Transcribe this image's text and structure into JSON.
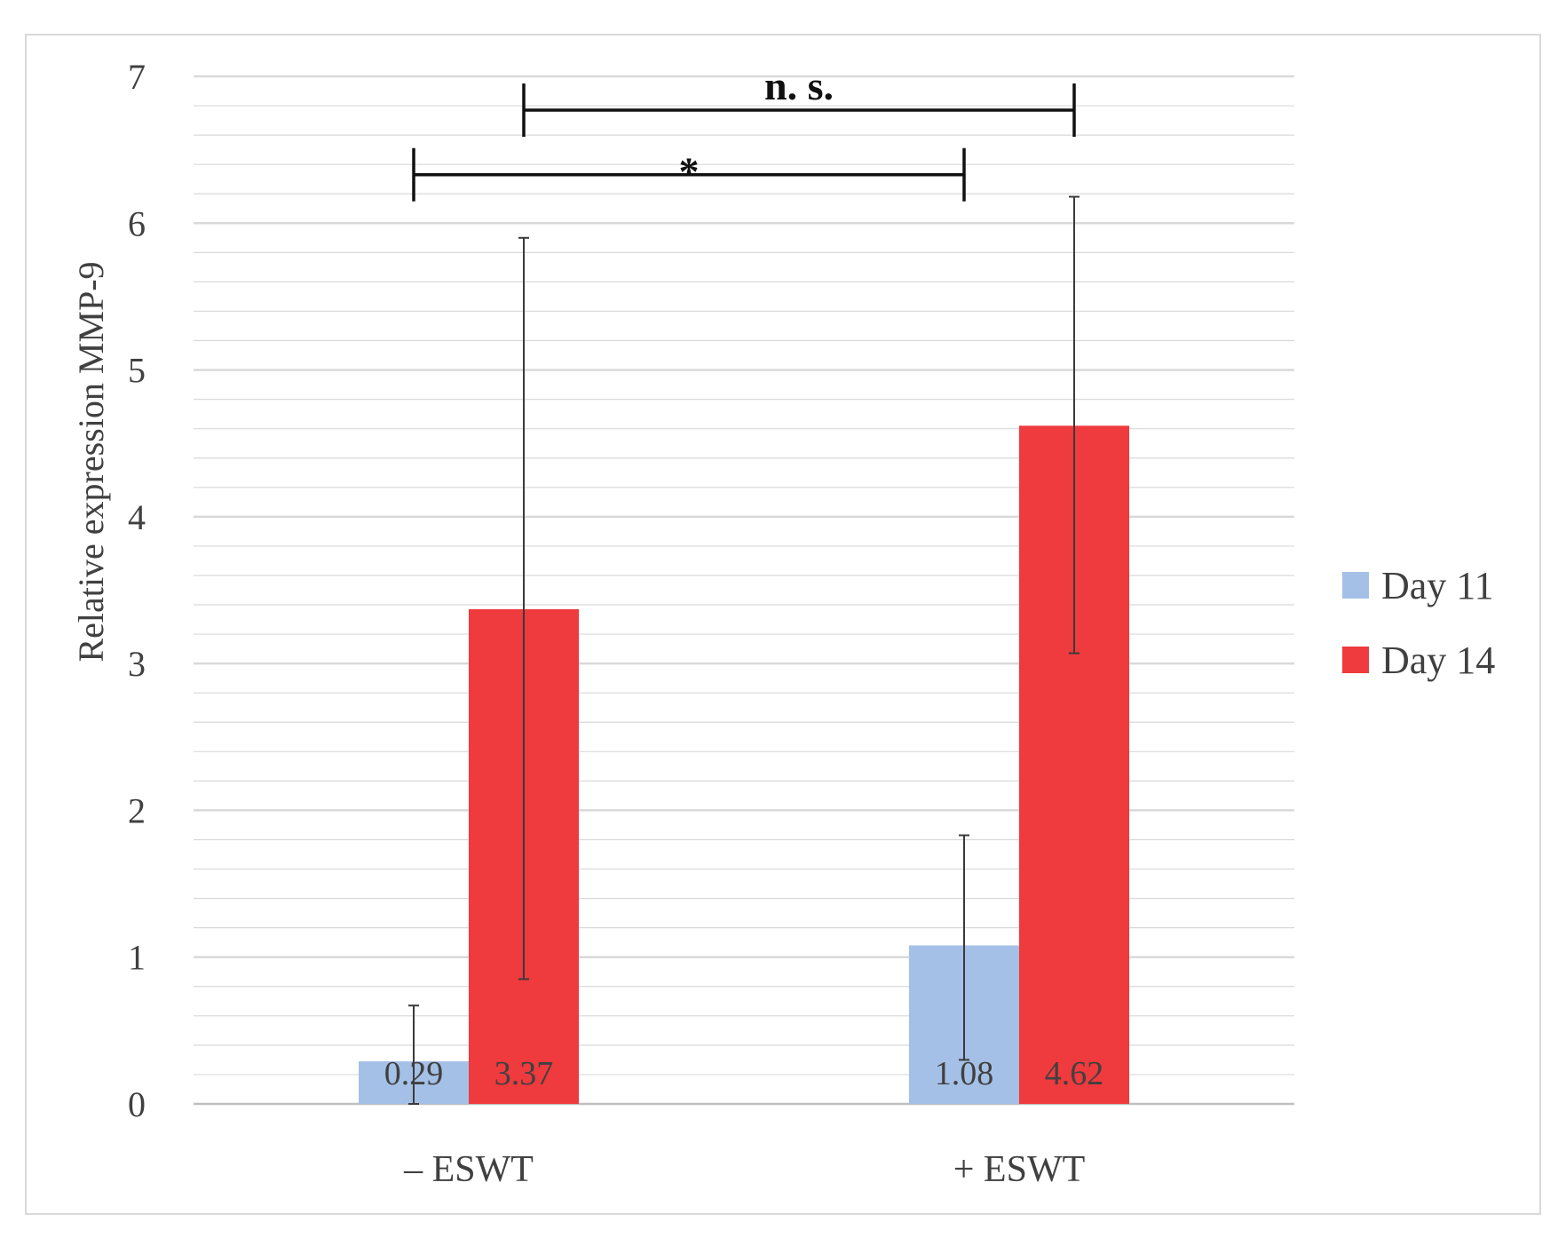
{
  "colors": {
    "day11": "#a4c0e6",
    "day14": "#ef3a3e",
    "gridline": "#d9d9d9",
    "text": "#404040",
    "annotation": "#111111"
  },
  "chart_data": {
    "type": "bar",
    "title": "",
    "xlabel": "",
    "ylabel": "Relative expression MMP-9",
    "ylim": [
      0,
      7
    ],
    "yticks": [
      0,
      1,
      2,
      3,
      4,
      5,
      6,
      7
    ],
    "minor_grid_step": 0.2,
    "grid": true,
    "legend_position": "right",
    "categories": [
      "– ESWT",
      "+ ESWT"
    ],
    "series": [
      {
        "name": "Day 11",
        "color_key": "day11",
        "values": [
          0.29,
          1.08
        ],
        "data_labels": [
          "0.29",
          "1.08"
        ],
        "error_low": [
          0.0,
          0.3
        ],
        "error_high": [
          0.67,
          1.83
        ]
      },
      {
        "name": "Day 14",
        "color_key": "day14",
        "values": [
          3.37,
          4.62
        ],
        "data_labels": [
          "3.37",
          "4.62"
        ],
        "error_low": [
          0.85,
          3.07
        ],
        "error_high": [
          5.9,
          6.18
        ]
      }
    ],
    "annotations": [
      {
        "label": "n. s.",
        "from": [
          0,
          "Day 14"
        ],
        "to": [
          1,
          "Day 14"
        ],
        "y": 6.77
      },
      {
        "label": "*",
        "from": [
          0,
          "Day 11"
        ],
        "to": [
          1,
          "Day 11"
        ],
        "y": 6.33
      }
    ]
  }
}
